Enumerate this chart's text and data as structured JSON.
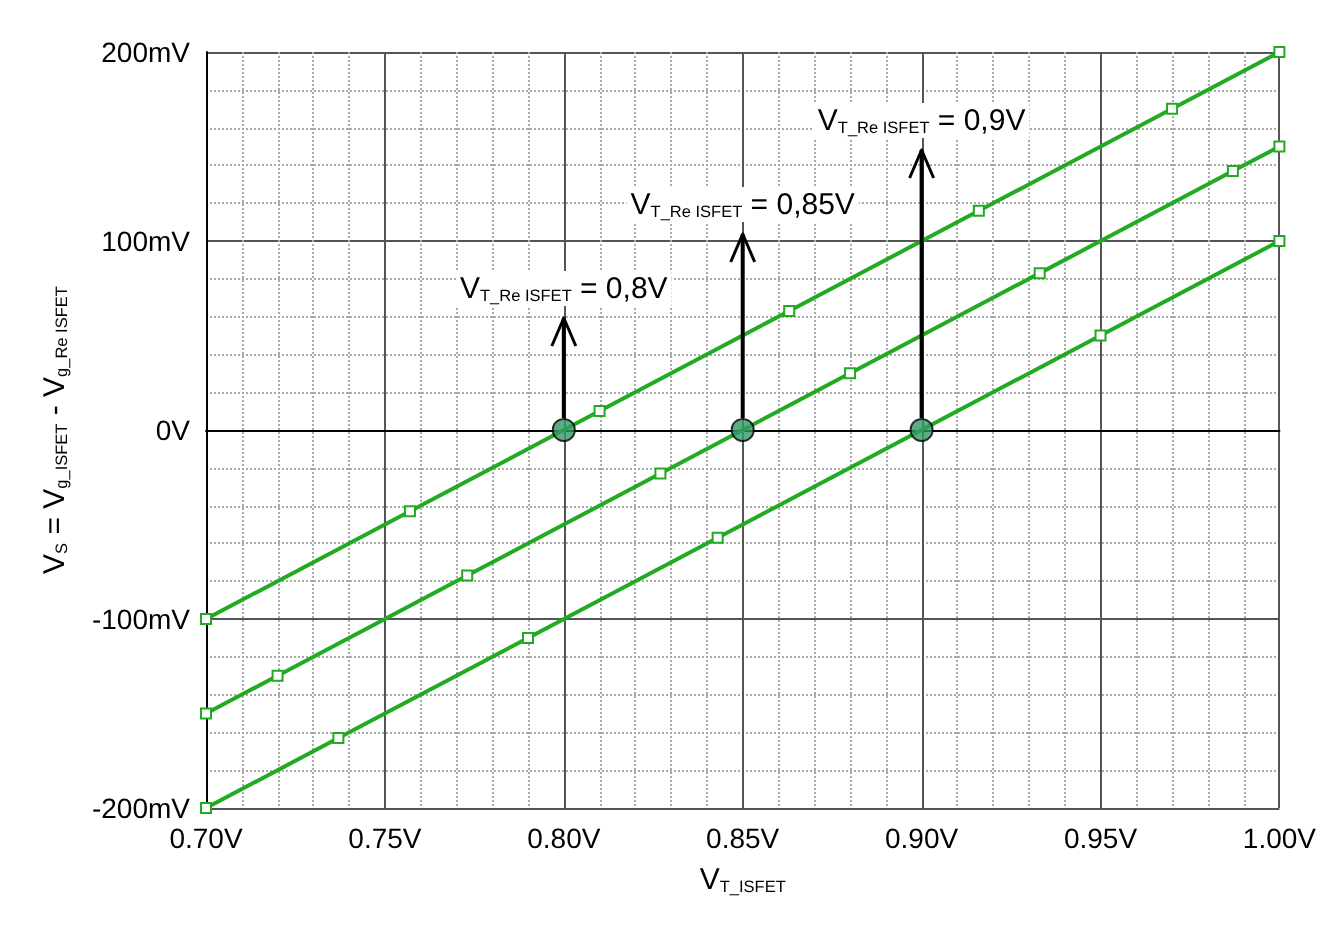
{
  "chart_data": {
    "type": "line",
    "xlabel": "V$_{T_ISFET}$",
    "ylabel": "V$_{S}$ = V$_{g_ISFET}$ - V$_{g_Re ISFET}$",
    "xlim": [
      0.7,
      1.0
    ],
    "ylim": [
      -200,
      200
    ],
    "xticks": [
      {
        "value": 0.7,
        "label": "0.70V"
      },
      {
        "value": 0.75,
        "label": "0.75V"
      },
      {
        "value": 0.8,
        "label": "0.80V"
      },
      {
        "value": 0.85,
        "label": "0.85V"
      },
      {
        "value": 0.9,
        "label": "0.90V"
      },
      {
        "value": 0.95,
        "label": "0.95V"
      },
      {
        "value": 1.0,
        "label": "1.00V"
      }
    ],
    "yticks": [
      {
        "value": -200,
        "label": "-200mV"
      },
      {
        "value": -100,
        "label": "-100mV"
      },
      {
        "value": 0,
        "label": "0V"
      },
      {
        "value": 100,
        "label": "100mV"
      },
      {
        "value": 200,
        "label": "200mV"
      }
    ],
    "grid": true,
    "marker": "square",
    "line_style": "solid",
    "series": [
      {
        "color": "#22aa22",
        "x": [
          0.7,
          0.757,
          0.81,
          0.863,
          0.916,
          0.97,
          1.0
        ],
        "values": [
          -100,
          -43,
          10,
          63,
          116,
          170,
          200
        ]
      },
      {
        "color": "#22aa22",
        "x": [
          0.7,
          0.72,
          0.773,
          0.827,
          0.88,
          0.933,
          0.987,
          1.0
        ],
        "values": [
          -150,
          -130,
          -77,
          -23,
          30,
          83,
          137,
          150
        ]
      },
      {
        "color": "#22aa22",
        "x": [
          0.7,
          0.737,
          0.79,
          0.843,
          0.95,
          1.0
        ],
        "values": [
          -200,
          -163,
          -110,
          -57,
          50,
          100
        ]
      },
      {
        "type": "scatter",
        "marker": "circle",
        "color": "#339966",
        "x": [
          0.8,
          0.85,
          0.9
        ],
        "values": [
          0,
          0,
          0
        ]
      }
    ],
    "annotations": [
      {
        "text": "V$_{T_Re ISFET}$ = 0,8V",
        "x": 0.8,
        "y": 0
      },
      {
        "text": "V$_{T_Re ISFET}$ = 0,85V",
        "x": 0.85,
        "y": 0
      },
      {
        "text": "V$_{T_Re ISFET}$ = 0,9V",
        "x": 0.9,
        "y": 0
      }
    ]
  }
}
